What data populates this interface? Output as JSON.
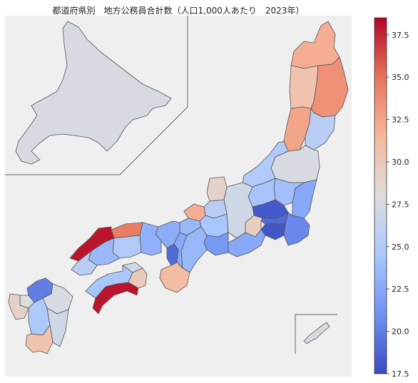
{
  "title": "都道府県別　地方公務員合計数（人口1,000人あたり　2023年）",
  "colorbar": {
    "min": 17.5,
    "max": 38.5,
    "ticks": [
      "17.5",
      "20.0",
      "22.5",
      "25.0",
      "27.5",
      "30.0",
      "32.5",
      "35.0",
      "37.5"
    ],
    "colors": [
      "#3b4cc0",
      "#6f92f3",
      "#aac7fd",
      "#dddddd",
      "#f7b89c",
      "#e7745b",
      "#b40426"
    ]
  },
  "prefectures": [
    {
      "name": "北海道",
      "value": 27.6
    },
    {
      "name": "青森",
      "value": 32.0
    },
    {
      "name": "岩手",
      "value": 33.5
    },
    {
      "name": "秋田",
      "value": 30.5
    },
    {
      "name": "山形",
      "value": 32.5
    },
    {
      "name": "宮城",
      "value": 25.5
    },
    {
      "name": "福島",
      "value": 27.6
    },
    {
      "name": "新潟",
      "value": 25.0
    },
    {
      "name": "茨城",
      "value": 22.5
    },
    {
      "name": "栃木",
      "value": 24.0
    },
    {
      "name": "群馬",
      "value": 24.3
    },
    {
      "name": "埼玉",
      "value": 18.2
    },
    {
      "name": "千葉",
      "value": 20.5
    },
    {
      "name": "東京",
      "value": 19.0
    },
    {
      "name": "神奈川",
      "value": 18.0
    },
    {
      "name": "山梨",
      "value": 29.5
    },
    {
      "name": "長野",
      "value": 27.0
    },
    {
      "name": "富山",
      "value": 25.5
    },
    {
      "name": "石川",
      "value": 29.0
    },
    {
      "name": "福井",
      "value": 32.0
    },
    {
      "name": "静岡",
      "value": 22.5
    },
    {
      "name": "愛知",
      "value": 21.5
    },
    {
      "name": "岐阜",
      "value": 24.5
    },
    {
      "name": "三重",
      "value": 23.5
    },
    {
      "name": "滋賀",
      "value": 23.5
    },
    {
      "name": "京都",
      "value": 22.8
    },
    {
      "name": "大阪",
      "value": 19.0
    },
    {
      "name": "兵庫",
      "value": 23.0
    },
    {
      "name": "奈良",
      "value": 22.5
    },
    {
      "name": "和歌山",
      "value": 31.0
    },
    {
      "name": "鳥取",
      "value": 34.5
    },
    {
      "name": "島根",
      "value": 38.0
    },
    {
      "name": "岡山",
      "value": 25.0
    },
    {
      "name": "広島",
      "value": 23.5
    },
    {
      "name": "山口",
      "value": 25.5
    },
    {
      "name": "徳島",
      "value": 30.0
    },
    {
      "name": "香川",
      "value": 27.0
    },
    {
      "name": "愛媛",
      "value": 24.5
    },
    {
      "name": "高知",
      "value": 38.0
    },
    {
      "name": "福岡",
      "value": 20.0
    },
    {
      "name": "佐賀",
      "value": 28.0
    },
    {
      "name": "長崎",
      "value": 29.0
    },
    {
      "name": "熊本",
      "value": 24.8
    },
    {
      "name": "大分",
      "value": 27.6
    },
    {
      "name": "宮崎",
      "value": 27.0
    },
    {
      "name": "鹿児島",
      "value": 30.5
    },
    {
      "name": "沖縄",
      "value": 27.6
    }
  ]
}
